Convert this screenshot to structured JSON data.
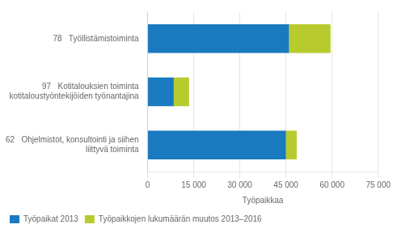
{
  "chart_data": {
    "type": "bar",
    "orientation": "horizontal",
    "stacked": true,
    "categories": [
      "78   Työllistämistoiminta",
      "97   Kotitalouksien toiminta\nkotitaloustyöntekijöiden työnantajina",
      "62   Ohjelmistot, konsultointi ja siihen\n     liittyvä toiminta"
    ],
    "series": [
      {
        "name": "Työpaikat 2013",
        "color": "#1a7abf",
        "values": [
          46000,
          8500,
          45000
        ]
      },
      {
        "name": "Työpaikkojen lukumäärän muutos 2013–2016",
        "color": "#b8cb2e",
        "values": [
          13500,
          5000,
          3500
        ]
      }
    ],
    "xlabel": "Työpaikkaa",
    "xlim": [
      0,
      75000
    ],
    "xticks": [
      0,
      {
        "value": 15000,
        "label": "15 000"
      },
      {
        "value": 30000,
        "label": "30 000"
      },
      {
        "value": 45000,
        "label": "45 000"
      },
      {
        "value": 60000,
        "label": "60 000"
      },
      {
        "value": 75000,
        "label": "75 000"
      }
    ],
    "grid": true,
    "legend": "bottom"
  }
}
